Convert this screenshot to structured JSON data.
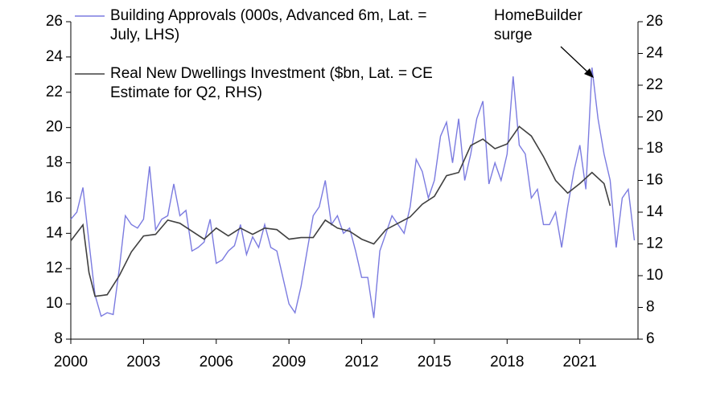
{
  "chart_data": {
    "type": "line",
    "annotation": "HomeBuilder surge",
    "xlim": [
      2000,
      2023.4
    ],
    "xticks": [
      2000,
      2003,
      2006,
      2009,
      2012,
      2015,
      2018,
      2021
    ],
    "ylim": [
      8,
      26
    ],
    "yticks": [
      8,
      10,
      12,
      14,
      16,
      18,
      20,
      22,
      24,
      26
    ],
    "y2lim": [
      6,
      26
    ],
    "y2ticks": [
      6,
      8,
      10,
      12,
      14,
      16,
      18,
      20,
      22,
      24,
      26
    ],
    "legend": "upper left",
    "series": [
      {
        "name": "Building Approvals (000s, Advanced 6m, Lat. = July, LHS)",
        "color": "#7b7be0",
        "x": [
          2000,
          2000.25,
          2000.5,
          2000.75,
          2001,
          2001.25,
          2001.5,
          2001.75,
          2002,
          2002.25,
          2002.5,
          2002.75,
          2003,
          2003.25,
          2003.5,
          2003.75,
          2004,
          2004.25,
          2004.5,
          2004.75,
          2005,
          2005.25,
          2005.5,
          2005.75,
          2006,
          2006.25,
          2006.5,
          2006.75,
          2007,
          2007.25,
          2007.5,
          2007.75,
          2008,
          2008.25,
          2008.5,
          2008.75,
          2009,
          2009.25,
          2009.5,
          2009.75,
          2010,
          2010.25,
          2010.5,
          2010.75,
          2011,
          2011.25,
          2011.5,
          2011.75,
          2012,
          2012.25,
          2012.5,
          2012.75,
          2013,
          2013.25,
          2013.5,
          2013.75,
          2014,
          2014.25,
          2014.5,
          2014.75,
          2015,
          2015.25,
          2015.5,
          2015.75,
          2016,
          2016.25,
          2016.5,
          2016.75,
          2017,
          2017.25,
          2017.5,
          2017.75,
          2018,
          2018.25,
          2018.5,
          2018.75,
          2019,
          2019.25,
          2019.5,
          2019.75,
          2020,
          2020.25,
          2020.5,
          2020.75,
          2021,
          2021.25,
          2021.5,
          2021.75,
          2022,
          2022.25,
          2022.5,
          2022.75,
          2023,
          2023.25
        ],
        "values": [
          14.8,
          15.2,
          16.6,
          13.5,
          10.5,
          9.3,
          9.5,
          9.4,
          12.0,
          15.0,
          14.5,
          14.3,
          14.8,
          17.8,
          14.2,
          14.8,
          15.0,
          16.8,
          15.0,
          15.3,
          13.0,
          13.2,
          13.5,
          14.8,
          12.3,
          12.5,
          13.0,
          13.3,
          14.5,
          12.8,
          13.8,
          13.2,
          14.5,
          13.2,
          13.0,
          11.5,
          10.0,
          9.5,
          11.0,
          13.0,
          15.0,
          15.5,
          17.0,
          14.5,
          15.0,
          14.0,
          14.3,
          13.0,
          11.5,
          11.5,
          9.2,
          13.0,
          14.0,
          15.0,
          14.5,
          14.0,
          15.5,
          18.2,
          17.5,
          16.0,
          17.0,
          19.5,
          20.3,
          18.0,
          20.5,
          17.0,
          18.5,
          20.5,
          21.5,
          16.8,
          18.0,
          17.0,
          18.5,
          22.9,
          19.0,
          18.5,
          16.0,
          16.5,
          14.5,
          14.5,
          15.2,
          13.2,
          15.5,
          17.5,
          19.0,
          16.5,
          23.4,
          20.5,
          18.5,
          17.0,
          13.2,
          16.0,
          16.5,
          13.6
        ]
      },
      {
        "name": "Real New Dwellings Investment ($bn, Lat. = CE Estimate for Q2, RHS)",
        "color": "#404040",
        "axis": "y2",
        "x": [
          2000,
          2000.5,
          2000.75,
          2001,
          2001.5,
          2002,
          2002.5,
          2003,
          2003.5,
          2004,
          2004.5,
          2005,
          2005.5,
          2006,
          2006.5,
          2007,
          2007.5,
          2008,
          2008.5,
          2009,
          2009.5,
          2010,
          2010.5,
          2011,
          2011.5,
          2012,
          2012.5,
          2013,
          2013.5,
          2014,
          2014.5,
          2015,
          2015.5,
          2016,
          2016.5,
          2017,
          2017.5,
          2018,
          2018.5,
          2019,
          2019.5,
          2020,
          2020.5,
          2021,
          2021.5,
          2022,
          2022.25
        ],
        "values": [
          12.2,
          13.2,
          10.2,
          8.7,
          8.8,
          10.0,
          11.5,
          12.5,
          12.6,
          13.5,
          13.3,
          12.8,
          12.3,
          13.0,
          12.5,
          13.0,
          12.6,
          13.0,
          12.9,
          12.3,
          12.4,
          12.4,
          13.5,
          13.0,
          12.8,
          12.3,
          12.0,
          12.9,
          13.3,
          13.7,
          14.5,
          15.0,
          16.3,
          16.5,
          18.2,
          18.6,
          18.0,
          18.3,
          19.4,
          18.8,
          17.5,
          16.0,
          15.2,
          15.8,
          16.5,
          15.8,
          14.4
        ]
      }
    ]
  }
}
